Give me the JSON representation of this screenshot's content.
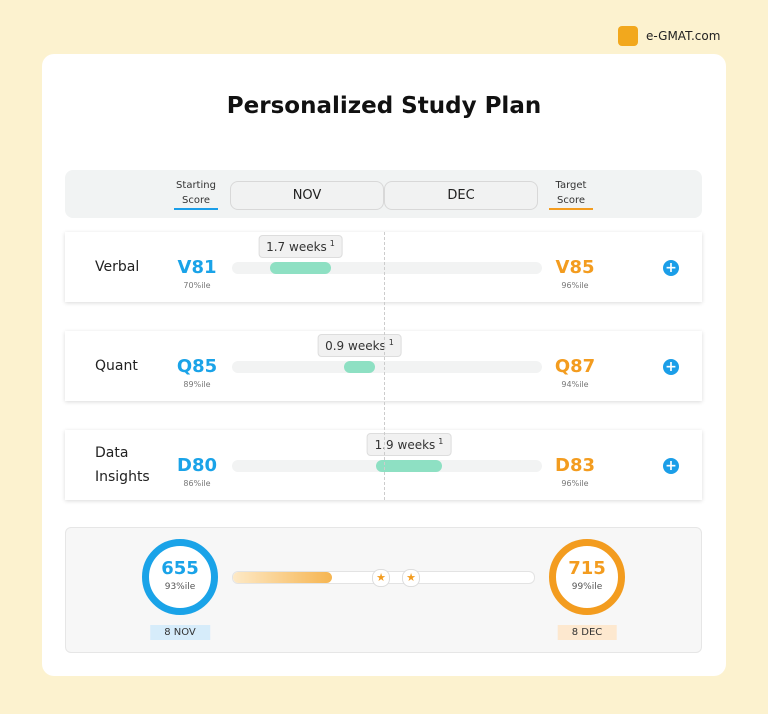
{
  "brand": "e-GMAT.com",
  "title": "Personalized Study Plan",
  "header": {
    "starting": "Starting Score",
    "months": [
      "NOV",
      "DEC"
    ],
    "target": "Target Score"
  },
  "rows": [
    {
      "section": "Verbal",
      "start": "V81",
      "start_pct": "70%ile",
      "duration": "1.7 weeks",
      "note": "1",
      "target": "V85",
      "target_pct": "96%ile"
    },
    {
      "section": "Quant",
      "start": "Q85",
      "start_pct": "89%ile",
      "duration": "0.9 weeks",
      "note": "1",
      "target": "Q87",
      "target_pct": "94%ile"
    },
    {
      "section": "Data Insights",
      "start": "D80",
      "start_pct": "86%ile",
      "duration": "1.9 weeks",
      "note": "1",
      "target": "D83",
      "target_pct": "96%ile"
    }
  ],
  "summary": {
    "start_score": "655",
    "start_pct": "93%ile",
    "start_date": "8 NOV",
    "target_score": "715",
    "target_pct": "99%ile",
    "target_date": "8 DEC"
  }
}
